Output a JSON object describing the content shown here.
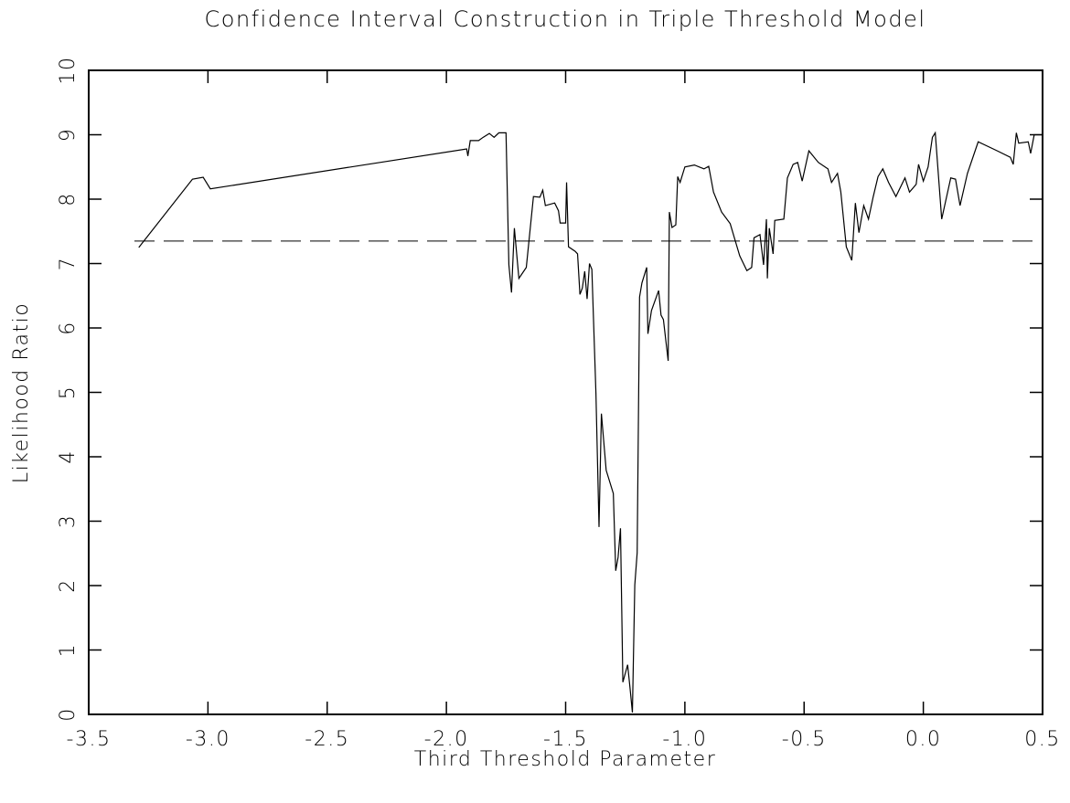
{
  "chart_data": {
    "type": "line",
    "title": "Confidence Interval Construction in Triple Threshold Model",
    "x_label": "Third Threshold Parameter",
    "y_label": "Likelihood Ratio",
    "xlim": [
      -3.5,
      0.5
    ],
    "xticks": [
      -3.5,
      {
        "value": -3.0,
        "label": "-3.0"
      },
      -2.5,
      {
        "value": -2.0,
        "label": "-2.0"
      },
      -1.5,
      {
        "value": -1.0,
        "label": "-1.0"
      },
      -0.5,
      {
        "value": 0.0,
        "label": "0.0"
      },
      0.5
    ],
    "ylim": [
      0,
      10
    ],
    "yticks": [
      0,
      1,
      2,
      3,
      4,
      5,
      6,
      7,
      8,
      9,
      10
    ],
    "threshold": 7.35,
    "series": [
      {
        "color": "#000000",
        "x": [
          -3.29,
          -3.065,
          -3.02,
          -2.99,
          -1.915,
          -1.91,
          -1.9,
          -1.865,
          -1.846,
          -1.82,
          -1.8,
          -1.78,
          -1.75,
          -1.738,
          -1.727,
          -1.715,
          -1.696,
          -1.665,
          -1.635,
          -1.608,
          -1.596,
          -1.585,
          -1.546,
          -1.53,
          -1.523,
          -1.5,
          -1.496,
          -1.488,
          -1.46,
          -1.45,
          -1.44,
          -1.43,
          -1.42,
          -1.41,
          -1.4,
          -1.39,
          -1.373,
          -1.36,
          -1.35,
          -1.33,
          -1.3,
          -1.29,
          -1.28,
          -1.27,
          -1.26,
          -1.24,
          -1.23,
          -1.22,
          -1.21,
          -1.2,
          -1.19,
          -1.18,
          -1.16,
          -1.155,
          -1.14,
          -1.11,
          -1.1,
          -1.09,
          -1.07,
          -1.065,
          -1.054,
          -1.038,
          -1.03,
          -1.02,
          -1.0,
          -0.96,
          -0.92,
          -0.9,
          -0.88,
          -0.846,
          -0.81,
          -0.77,
          -0.74,
          -0.72,
          -0.71,
          -0.685,
          -0.67,
          -0.658,
          -0.654,
          -0.646,
          -0.63,
          -0.623,
          -0.585,
          -0.57,
          -0.546,
          -0.527,
          -0.508,
          -0.48,
          -0.44,
          -0.4,
          -0.385,
          -0.36,
          -0.346,
          -0.323,
          -0.3,
          -0.285,
          -0.27,
          -0.25,
          -0.23,
          -0.21,
          -0.19,
          -0.17,
          -0.146,
          -0.115,
          -0.077,
          -0.058,
          -0.03,
          -0.02,
          0.0,
          0.02,
          0.038,
          0.05,
          0.077,
          0.115,
          0.135,
          0.154,
          0.185,
          0.23,
          0.31,
          0.365,
          0.377,
          0.39,
          0.4,
          0.44,
          0.45,
          0.465,
          0.5
        ],
        "values": [
          7.25,
          8.31,
          8.34,
          8.16,
          8.78,
          8.67,
          8.91,
          8.91,
          8.96,
          9.02,
          8.96,
          9.03,
          9.03,
          6.98,
          6.55,
          7.55,
          6.77,
          6.94,
          8.04,
          8.03,
          8.14,
          7.9,
          7.94,
          7.82,
          7.63,
          7.63,
          8.26,
          7.26,
          7.19,
          7.15,
          6.52,
          6.62,
          6.88,
          6.45,
          7.0,
          6.91,
          4.99,
          2.91,
          4.67,
          3.79,
          3.43,
          2.23,
          2.44,
          2.89,
          0.5,
          0.77,
          0.41,
          0.03,
          2.01,
          2.51,
          6.48,
          6.7,
          6.94,
          5.91,
          6.27,
          6.58,
          6.2,
          6.13,
          5.49,
          7.8,
          7.56,
          7.6,
          8.35,
          8.26,
          8.5,
          8.53,
          8.47,
          8.51,
          8.11,
          7.8,
          7.62,
          7.12,
          6.89,
          6.94,
          7.4,
          7.45,
          6.98,
          7.69,
          6.77,
          7.55,
          7.15,
          7.67,
          7.69,
          8.33,
          8.54,
          8.57,
          8.28,
          8.75,
          8.57,
          8.47,
          8.26,
          8.4,
          8.11,
          7.26,
          7.05,
          7.94,
          7.48,
          7.9,
          7.69,
          8.04,
          8.35,
          8.47,
          8.26,
          8.04,
          8.33,
          8.11,
          8.23,
          8.54,
          8.28,
          8.5,
          8.96,
          9.03,
          7.69,
          8.33,
          8.31,
          7.9,
          8.4,
          8.89,
          8.75,
          8.65,
          8.54,
          9.03,
          8.87,
          8.89,
          8.71,
          9.0,
          9.0
        ]
      }
    ]
  }
}
